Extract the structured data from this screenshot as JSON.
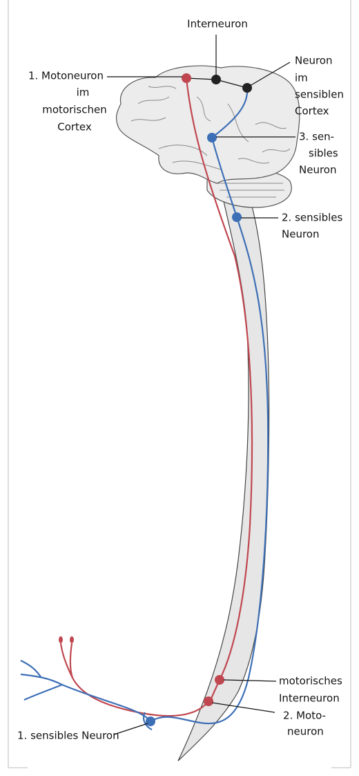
{
  "labels": {
    "interneuron": {
      "lines": [
        "Interneuron"
      ]
    },
    "motoneuron1": {
      "lines": [
        "1. Motoneuron",
        "im",
        "motorischen",
        "Cortex"
      ]
    },
    "sensory_cortex": {
      "lines": [
        "Neuron",
        "im",
        "sensiblen",
        "Cortex"
      ]
    },
    "sensory3": {
      "lines": [
        "3. sen-",
        "sibles",
        "Neuron"
      ]
    },
    "sensory2": {
      "lines": [
        "2. sensibles",
        "Neuron"
      ]
    },
    "motor_interneuron": {
      "lines": [
        "motorisches",
        "Interneuron"
      ]
    },
    "motoneuron2": {
      "lines": [
        "2. Moto-",
        "neuron"
      ]
    },
    "sensory1": {
      "lines": [
        "1. sensibles Neuron"
      ]
    }
  }
}
